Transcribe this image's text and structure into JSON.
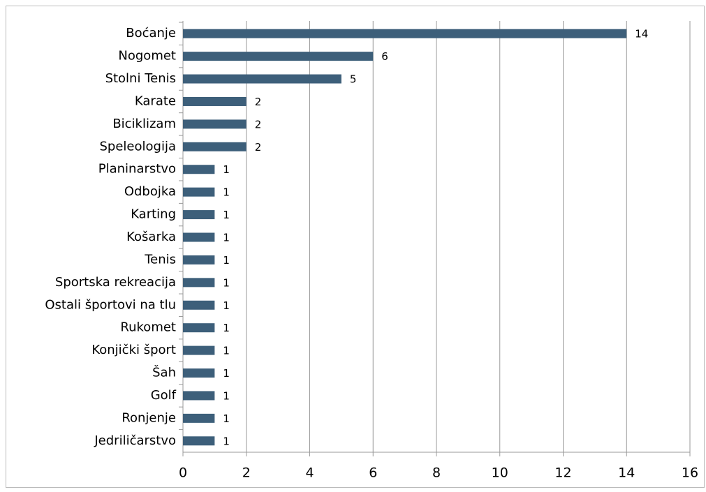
{
  "chart_data": {
    "type": "barh",
    "categories": [
      "Boćanje",
      "Nogomet",
      "Stolni Tenis",
      "Karate",
      "Biciklizam",
      "Speleologija",
      "Planinarstvo",
      "Odbojka",
      "Karting",
      "Košarka",
      "Tenis",
      "Sportska rekreacija",
      "Ostali športovi na tlu",
      "Rukomet",
      "Konjički šport",
      "Šah",
      "Golf",
      "Ronjenje",
      "Jedriličarstvo"
    ],
    "values": [
      14,
      6,
      5,
      2,
      2,
      2,
      1,
      1,
      1,
      1,
      1,
      1,
      1,
      1,
      1,
      1,
      1,
      1,
      1
    ],
    "color": "#3d5f7a",
    "xlim": [
      0,
      16
    ],
    "xticks": [
      0,
      2,
      4,
      6,
      8,
      10,
      12,
      14,
      16
    ],
    "grid": true
  }
}
